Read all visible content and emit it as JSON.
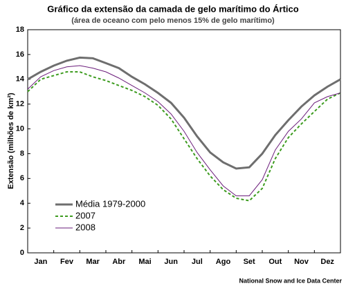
{
  "chart_data": {
    "type": "line",
    "title": "Gráfico da extensão da camada de gelo marítimo do Ártico",
    "subtitle": "(área de oceano com pelo menos 15% de gelo marítimo)",
    "y_label": "Extensão (milhões de km²)",
    "source": "National Snow and Ice Data Center",
    "categories": [
      null,
      "Jan",
      null,
      "Fev",
      null,
      "Mar",
      null,
      "Abr",
      null,
      "Mai",
      null,
      "Jun",
      null,
      "Jul",
      null,
      "Ago",
      null,
      "Set",
      null,
      "Out",
      null,
      "Nov",
      null,
      "Dez",
      null
    ],
    "series": [
      {
        "name": "Média 1979-2000",
        "color": "#6e6e6e",
        "values": [
          14.0,
          14.6,
          15.1,
          15.5,
          15.75,
          15.7,
          15.3,
          14.9,
          14.2,
          13.6,
          12.9,
          12.1,
          10.9,
          9.4,
          8.1,
          7.3,
          6.8,
          6.9,
          8.0,
          9.5,
          10.7,
          11.8,
          12.7,
          13.4,
          14.0
        ]
      },
      {
        "name": "2007",
        "color": "#3c9b1e",
        "values": [
          13.0,
          14.0,
          14.3,
          14.6,
          14.6,
          14.2,
          13.9,
          13.5,
          13.1,
          12.6,
          11.9,
          10.8,
          9.2,
          7.6,
          6.2,
          5.1,
          4.4,
          4.2,
          5.2,
          7.6,
          9.3,
          10.4,
          11.4,
          12.4,
          12.9
        ]
      },
      {
        "name": "2008",
        "color": "#6a1b7a",
        "values": [
          13.2,
          14.2,
          14.7,
          15.0,
          15.1,
          14.9,
          14.6,
          14.1,
          13.5,
          12.9,
          12.2,
          11.2,
          9.8,
          8.1,
          6.7,
          5.4,
          4.6,
          4.6,
          5.9,
          8.3,
          9.8,
          10.8,
          12.1,
          12.6,
          12.9
        ]
      }
    ],
    "ylim": [
      0,
      18
    ],
    "yticks": [
      0,
      2,
      4,
      6,
      8,
      10,
      12,
      14,
      16,
      18
    ],
    "legend": "lower left"
  }
}
